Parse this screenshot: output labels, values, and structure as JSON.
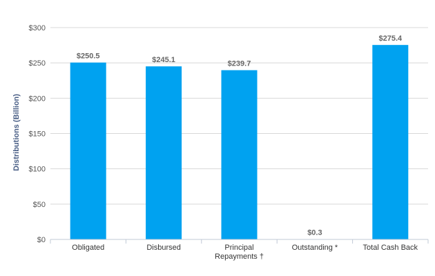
{
  "chart_data": {
    "type": "bar",
    "categories": [
      "Obligated",
      "Disbursed",
      "Principal Repayments †",
      "Outstanding *",
      "Total Cash Back"
    ],
    "category_lines": [
      [
        "Obligated"
      ],
      [
        "Disbursed"
      ],
      [
        "Principal",
        "Repayments †"
      ],
      [
        "Outstanding *"
      ],
      [
        "Total Cash Back"
      ]
    ],
    "values": [
      250.5,
      245.1,
      239.7,
      0.3,
      275.4
    ],
    "data_labels": [
      "$250.5",
      "$245.1",
      "$239.7",
      "$0.3",
      "$275.4"
    ],
    "ylabel": "Distributions (Billion)",
    "ylim": [
      0,
      300
    ],
    "yticks": [
      0,
      50,
      100,
      150,
      200,
      250,
      300
    ],
    "ytick_labels": [
      "$0",
      "$50",
      "$100",
      "$150",
      "$200",
      "$250",
      "$300"
    ],
    "grid": true,
    "bar_color": "#00a2f0"
  }
}
